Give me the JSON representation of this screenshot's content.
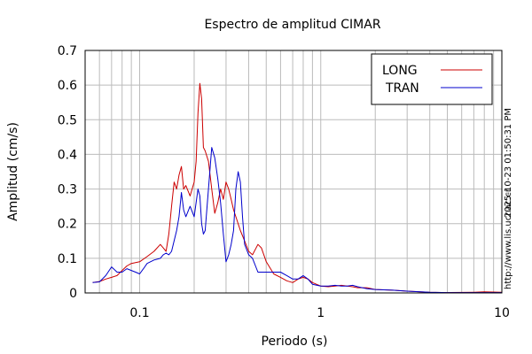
{
  "chart_data": {
    "type": "line",
    "title": "Espectro de amplitud CIMAR",
    "xlabel": "Periodo (s)",
    "ylabel": "Amplitud (cm/s)",
    "x_scale": "log",
    "xlim": [
      0.05,
      10
    ],
    "ylim": [
      0,
      0.7
    ],
    "x_ticks": [
      0.1,
      1,
      10
    ],
    "x_tick_labels": [
      "0.1",
      "1",
      "10"
    ],
    "y_ticks": [
      0,
      0.1,
      0.2,
      0.3,
      0.4,
      0.5,
      0.6,
      0.7
    ],
    "y_tick_labels": [
      "0",
      "0.1",
      "0.2",
      "0.3",
      "0.4",
      "0.5",
      "0.6",
      "0.7"
    ],
    "grid": true,
    "legend_position": "top-right",
    "timestamp": "2025-10-23 01:50:31 PM",
    "url": "http://www.lis.ucr.ac.cr",
    "series": [
      {
        "name": "LONG",
        "color": "#cc0000",
        "points": [
          [
            0.055,
            0.03
          ],
          [
            0.06,
            0.033
          ],
          [
            0.065,
            0.04
          ],
          [
            0.07,
            0.045
          ],
          [
            0.075,
            0.05
          ],
          [
            0.08,
            0.065
          ],
          [
            0.085,
            0.078
          ],
          [
            0.09,
            0.085
          ],
          [
            0.1,
            0.09
          ],
          [
            0.11,
            0.105
          ],
          [
            0.12,
            0.12
          ],
          [
            0.13,
            0.14
          ],
          [
            0.135,
            0.13
          ],
          [
            0.14,
            0.12
          ],
          [
            0.145,
            0.17
          ],
          [
            0.15,
            0.25
          ],
          [
            0.155,
            0.32
          ],
          [
            0.16,
            0.3
          ],
          [
            0.165,
            0.34
          ],
          [
            0.17,
            0.365
          ],
          [
            0.175,
            0.3
          ],
          [
            0.18,
            0.31
          ],
          [
            0.19,
            0.28
          ],
          [
            0.2,
            0.32
          ],
          [
            0.205,
            0.38
          ],
          [
            0.21,
            0.52
          ],
          [
            0.215,
            0.605
          ],
          [
            0.22,
            0.56
          ],
          [
            0.225,
            0.42
          ],
          [
            0.23,
            0.41
          ],
          [
            0.24,
            0.38
          ],
          [
            0.25,
            0.3
          ],
          [
            0.26,
            0.23
          ],
          [
            0.27,
            0.26
          ],
          [
            0.28,
            0.3
          ],
          [
            0.29,
            0.27
          ],
          [
            0.3,
            0.32
          ],
          [
            0.31,
            0.3
          ],
          [
            0.32,
            0.27
          ],
          [
            0.33,
            0.24
          ],
          [
            0.34,
            0.22
          ],
          [
            0.36,
            0.18
          ],
          [
            0.38,
            0.15
          ],
          [
            0.4,
            0.12
          ],
          [
            0.42,
            0.11
          ],
          [
            0.45,
            0.14
          ],
          [
            0.47,
            0.13
          ],
          [
            0.5,
            0.09
          ],
          [
            0.55,
            0.055
          ],
          [
            0.6,
            0.045
          ],
          [
            0.65,
            0.035
          ],
          [
            0.7,
            0.03
          ],
          [
            0.75,
            0.04
          ],
          [
            0.8,
            0.045
          ],
          [
            0.85,
            0.04
          ],
          [
            0.9,
            0.03
          ],
          [
            1.0,
            0.02
          ],
          [
            1.1,
            0.018
          ],
          [
            1.2,
            0.02
          ],
          [
            1.3,
            0.022
          ],
          [
            1.4,
            0.02
          ],
          [
            1.5,
            0.018
          ],
          [
            1.6,
            0.015
          ],
          [
            1.8,
            0.015
          ],
          [
            2.0,
            0.01
          ],
          [
            2.5,
            0.008
          ],
          [
            3.0,
            0.005
          ],
          [
            4.0,
            0.002
          ],
          [
            5.0,
            0.001
          ],
          [
            7.0,
            0.002
          ],
          [
            8.0,
            0.003
          ],
          [
            10.0,
            0.002
          ]
        ]
      },
      {
        "name": "TRAN",
        "color": "#0000cc",
        "points": [
          [
            0.055,
            0.03
          ],
          [
            0.06,
            0.032
          ],
          [
            0.065,
            0.05
          ],
          [
            0.07,
            0.075
          ],
          [
            0.075,
            0.06
          ],
          [
            0.08,
            0.06
          ],
          [
            0.085,
            0.07
          ],
          [
            0.09,
            0.065
          ],
          [
            0.095,
            0.06
          ],
          [
            0.1,
            0.055
          ],
          [
            0.105,
            0.07
          ],
          [
            0.11,
            0.085
          ],
          [
            0.12,
            0.095
          ],
          [
            0.13,
            0.1
          ],
          [
            0.135,
            0.11
          ],
          [
            0.14,
            0.115
          ],
          [
            0.145,
            0.11
          ],
          [
            0.15,
            0.12
          ],
          [
            0.16,
            0.18
          ],
          [
            0.165,
            0.22
          ],
          [
            0.17,
            0.29
          ],
          [
            0.175,
            0.24
          ],
          [
            0.18,
            0.22
          ],
          [
            0.19,
            0.25
          ],
          [
            0.2,
            0.22
          ],
          [
            0.21,
            0.3
          ],
          [
            0.215,
            0.28
          ],
          [
            0.22,
            0.2
          ],
          [
            0.225,
            0.17
          ],
          [
            0.23,
            0.18
          ],
          [
            0.24,
            0.3
          ],
          [
            0.25,
            0.42
          ],
          [
            0.26,
            0.39
          ],
          [
            0.27,
            0.33
          ],
          [
            0.28,
            0.26
          ],
          [
            0.29,
            0.17
          ],
          [
            0.3,
            0.09
          ],
          [
            0.31,
            0.11
          ],
          [
            0.32,
            0.14
          ],
          [
            0.33,
            0.18
          ],
          [
            0.34,
            0.3
          ],
          [
            0.35,
            0.35
          ],
          [
            0.36,
            0.32
          ],
          [
            0.37,
            0.22
          ],
          [
            0.38,
            0.14
          ],
          [
            0.4,
            0.11
          ],
          [
            0.42,
            0.1
          ],
          [
            0.45,
            0.06
          ],
          [
            0.5,
            0.06
          ],
          [
            0.55,
            0.06
          ],
          [
            0.6,
            0.06
          ],
          [
            0.65,
            0.05
          ],
          [
            0.7,
            0.04
          ],
          [
            0.75,
            0.04
          ],
          [
            0.8,
            0.05
          ],
          [
            0.85,
            0.04
          ],
          [
            0.9,
            0.025
          ],
          [
            1.0,
            0.02
          ],
          [
            1.1,
            0.02
          ],
          [
            1.2,
            0.022
          ],
          [
            1.3,
            0.02
          ],
          [
            1.4,
            0.02
          ],
          [
            1.5,
            0.022
          ],
          [
            1.6,
            0.018
          ],
          [
            1.8,
            0.012
          ],
          [
            2.0,
            0.01
          ],
          [
            2.5,
            0.008
          ],
          [
            3.0,
            0.005
          ],
          [
            4.0,
            0.002
          ],
          [
            5.0,
            0.001
          ],
          [
            7.0,
            0.001
          ],
          [
            10.0,
            0.001
          ]
        ]
      }
    ]
  }
}
